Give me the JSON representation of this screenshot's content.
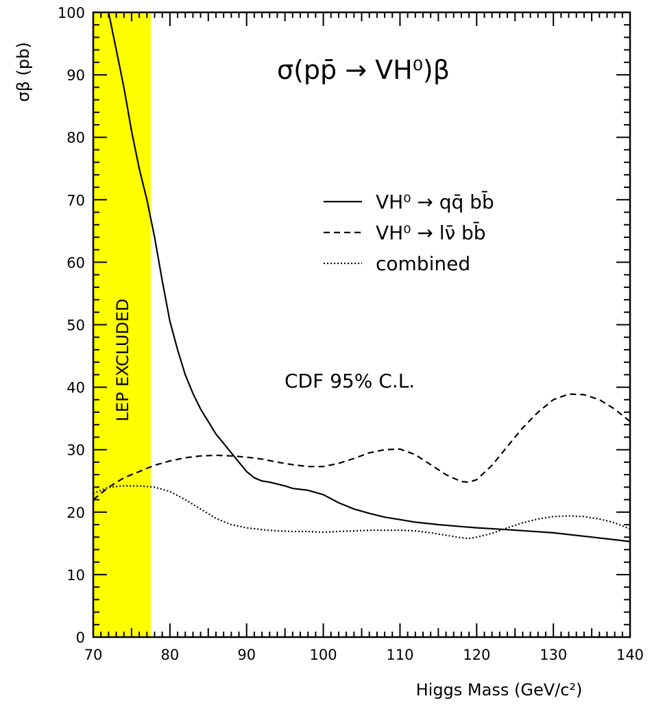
{
  "chart_data": {
    "type": "line",
    "title": "σ(pp̄ → VH⁰)β",
    "xlabel": "Higgs Mass (GeV/c²)",
    "ylabel": "σβ (pb)",
    "xlim": [
      70,
      140
    ],
    "ylim": [
      0,
      100
    ],
    "xticks": [
      70,
      80,
      90,
      100,
      110,
      120,
      130,
      140
    ],
    "yticks": [
      0,
      10,
      20,
      30,
      40,
      50,
      60,
      70,
      80,
      90,
      100
    ],
    "grid": false,
    "legend": "upper-right",
    "excluded_region": {
      "label": "LEP EXCLUDED",
      "x_range": [
        70,
        77.5
      ],
      "color": "#ffff00"
    },
    "annotation": "CDF  95% C.L.",
    "series": [
      {
        "name": "VH⁰ → qq̄ bb̄",
        "style": "solid",
        "x": [
          72,
          73,
          74,
          75,
          76,
          77,
          78,
          79,
          80,
          81,
          82,
          83,
          84,
          85,
          86,
          87,
          88,
          89,
          90,
          91,
          92,
          93,
          94,
          95,
          96,
          98,
          100,
          102,
          104,
          106,
          108,
          110,
          112,
          115,
          118,
          120,
          124,
          130,
          135,
          140
        ],
        "y": [
          100,
          94,
          88,
          81,
          75,
          70,
          64,
          57,
          50.5,
          46,
          42,
          39,
          36.5,
          34.5,
          32.5,
          31,
          29.5,
          28,
          26.5,
          25.5,
          25,
          24.8,
          24.5,
          24.2,
          23.8,
          23.5,
          22.8,
          21.5,
          20.5,
          19.8,
          19.2,
          18.8,
          18.4,
          18,
          17.7,
          17.5,
          17.2,
          16.7,
          16,
          15.3
        ]
      },
      {
        "name": "VH⁰ → lν̄ bb̄",
        "style": "dashed",
        "x": [
          70,
          72,
          74,
          76,
          78,
          80,
          82,
          84,
          86,
          88,
          90,
          92,
          94,
          96,
          98,
          100,
          102,
          104,
          106,
          108,
          110,
          112,
          114,
          116,
          118,
          119,
          120,
          122,
          124,
          126,
          128,
          130,
          132,
          134,
          136,
          138,
          140
        ],
        "y": [
          22,
          24,
          25.5,
          26.5,
          27.5,
          28.2,
          28.7,
          29,
          29.1,
          29,
          28.8,
          28.5,
          28,
          27.6,
          27.3,
          27.3,
          27.8,
          28.6,
          29.5,
          30,
          30.1,
          29.2,
          27.6,
          26,
          24.9,
          24.8,
          25.2,
          27.5,
          30.5,
          33.5,
          36,
          38,
          38.9,
          38.8,
          38,
          36.5,
          34.5
        ]
      },
      {
        "name": "combined",
        "style": "dotted",
        "x": [
          70,
          72,
          74,
          76,
          78,
          80,
          82,
          84,
          86,
          88,
          90,
          92,
          94,
          96,
          98,
          100,
          102,
          104,
          106,
          108,
          110,
          112,
          114,
          116,
          118,
          119,
          120,
          122,
          124,
          126,
          128,
          130,
          132,
          134,
          136,
          138,
          140
        ],
        "y": [
          23,
          24,
          24.2,
          24.2,
          24,
          23.3,
          22,
          20.5,
          19,
          18,
          17.5,
          17.2,
          17,
          16.9,
          16.9,
          16.8,
          16.9,
          17,
          17.1,
          17.1,
          17.1,
          17,
          16.7,
          16.3,
          15.9,
          15.8,
          16,
          16.6,
          17.5,
          18.3,
          18.9,
          19.3,
          19.4,
          19.3,
          18.9,
          18.3,
          17.3
        ]
      }
    ]
  }
}
